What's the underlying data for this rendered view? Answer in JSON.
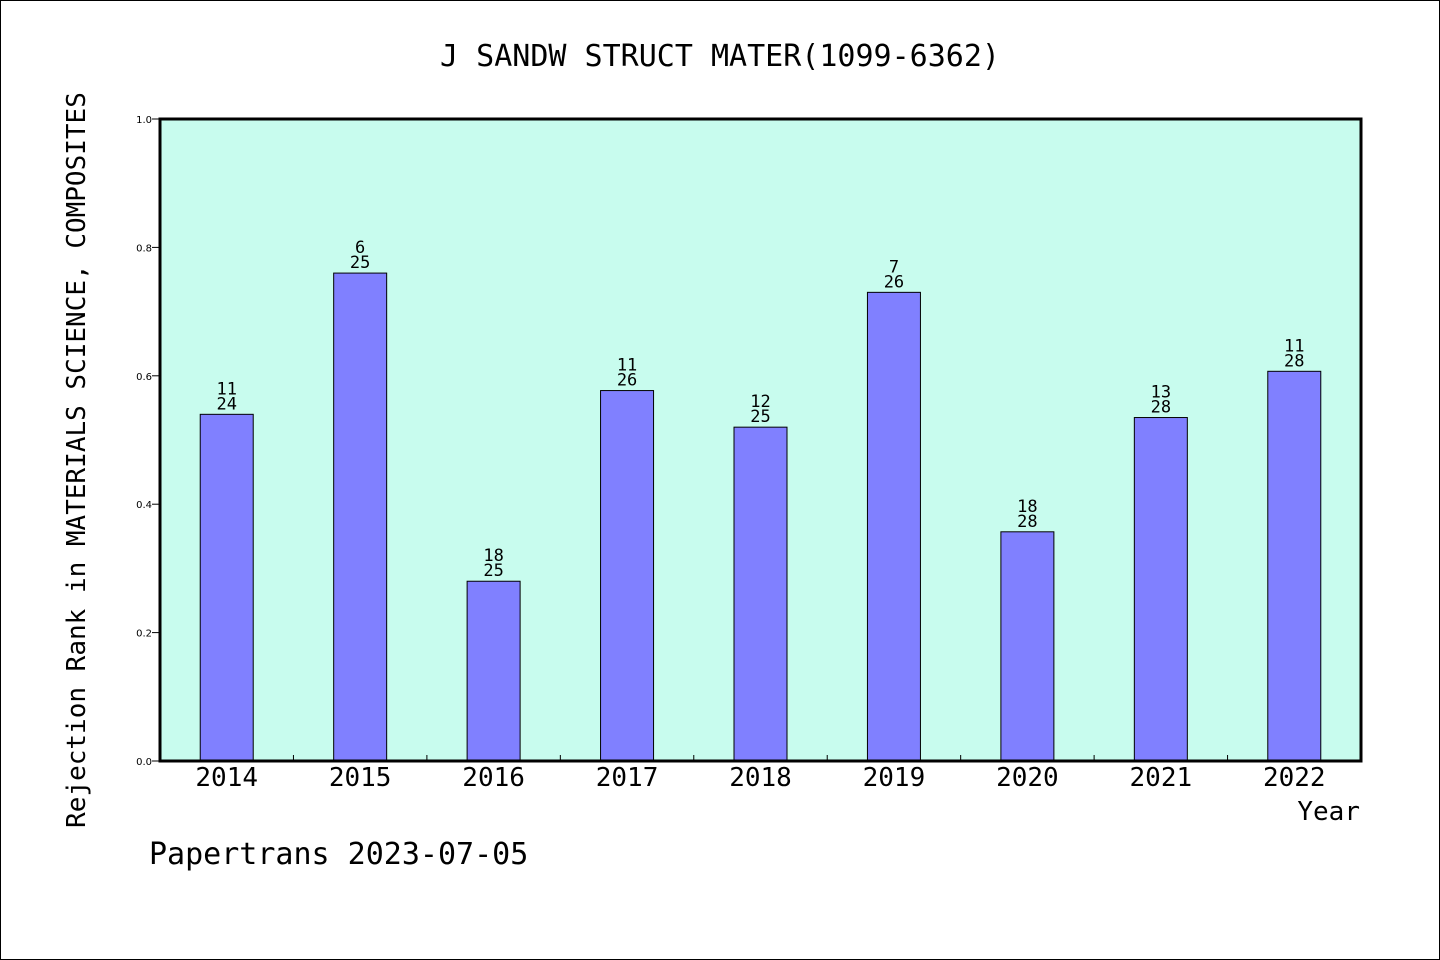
{
  "chart_data": {
    "type": "bar",
    "title": "J SANDW STRUCT MATER(1099-6362)",
    "xlabel": "Year",
    "ylabel": "Rejection Rank in MATERIALS SCIENCE, COMPOSITES",
    "categories": [
      "2014",
      "2015",
      "2016",
      "2017",
      "2018",
      "2019",
      "2020",
      "2021",
      "2022"
    ],
    "values": [
      0.54,
      0.76,
      0.28,
      0.577,
      0.52,
      0.73,
      0.357,
      0.535,
      0.607
    ],
    "bar_labels": [
      [
        "11",
        "24"
      ],
      [
        "6",
        "25"
      ],
      [
        "18",
        "25"
      ],
      [
        "11",
        "26"
      ],
      [
        "12",
        "25"
      ],
      [
        "7",
        "26"
      ],
      [
        "18",
        "28"
      ],
      [
        "13",
        "28"
      ],
      [
        "11",
        "28"
      ]
    ],
    "ylim": [
      0.0,
      1.0
    ],
    "yticks": [
      "0.0",
      "0.2",
      "0.4",
      "0.6",
      "0.8",
      "1.0"
    ],
    "grid": false,
    "colors": {
      "plot_background": "#c8fcee",
      "bar_fill": "#8080ff",
      "bar_stroke": "#000000"
    }
  },
  "footer": {
    "credit": "Papertrans 2023-07-05"
  }
}
